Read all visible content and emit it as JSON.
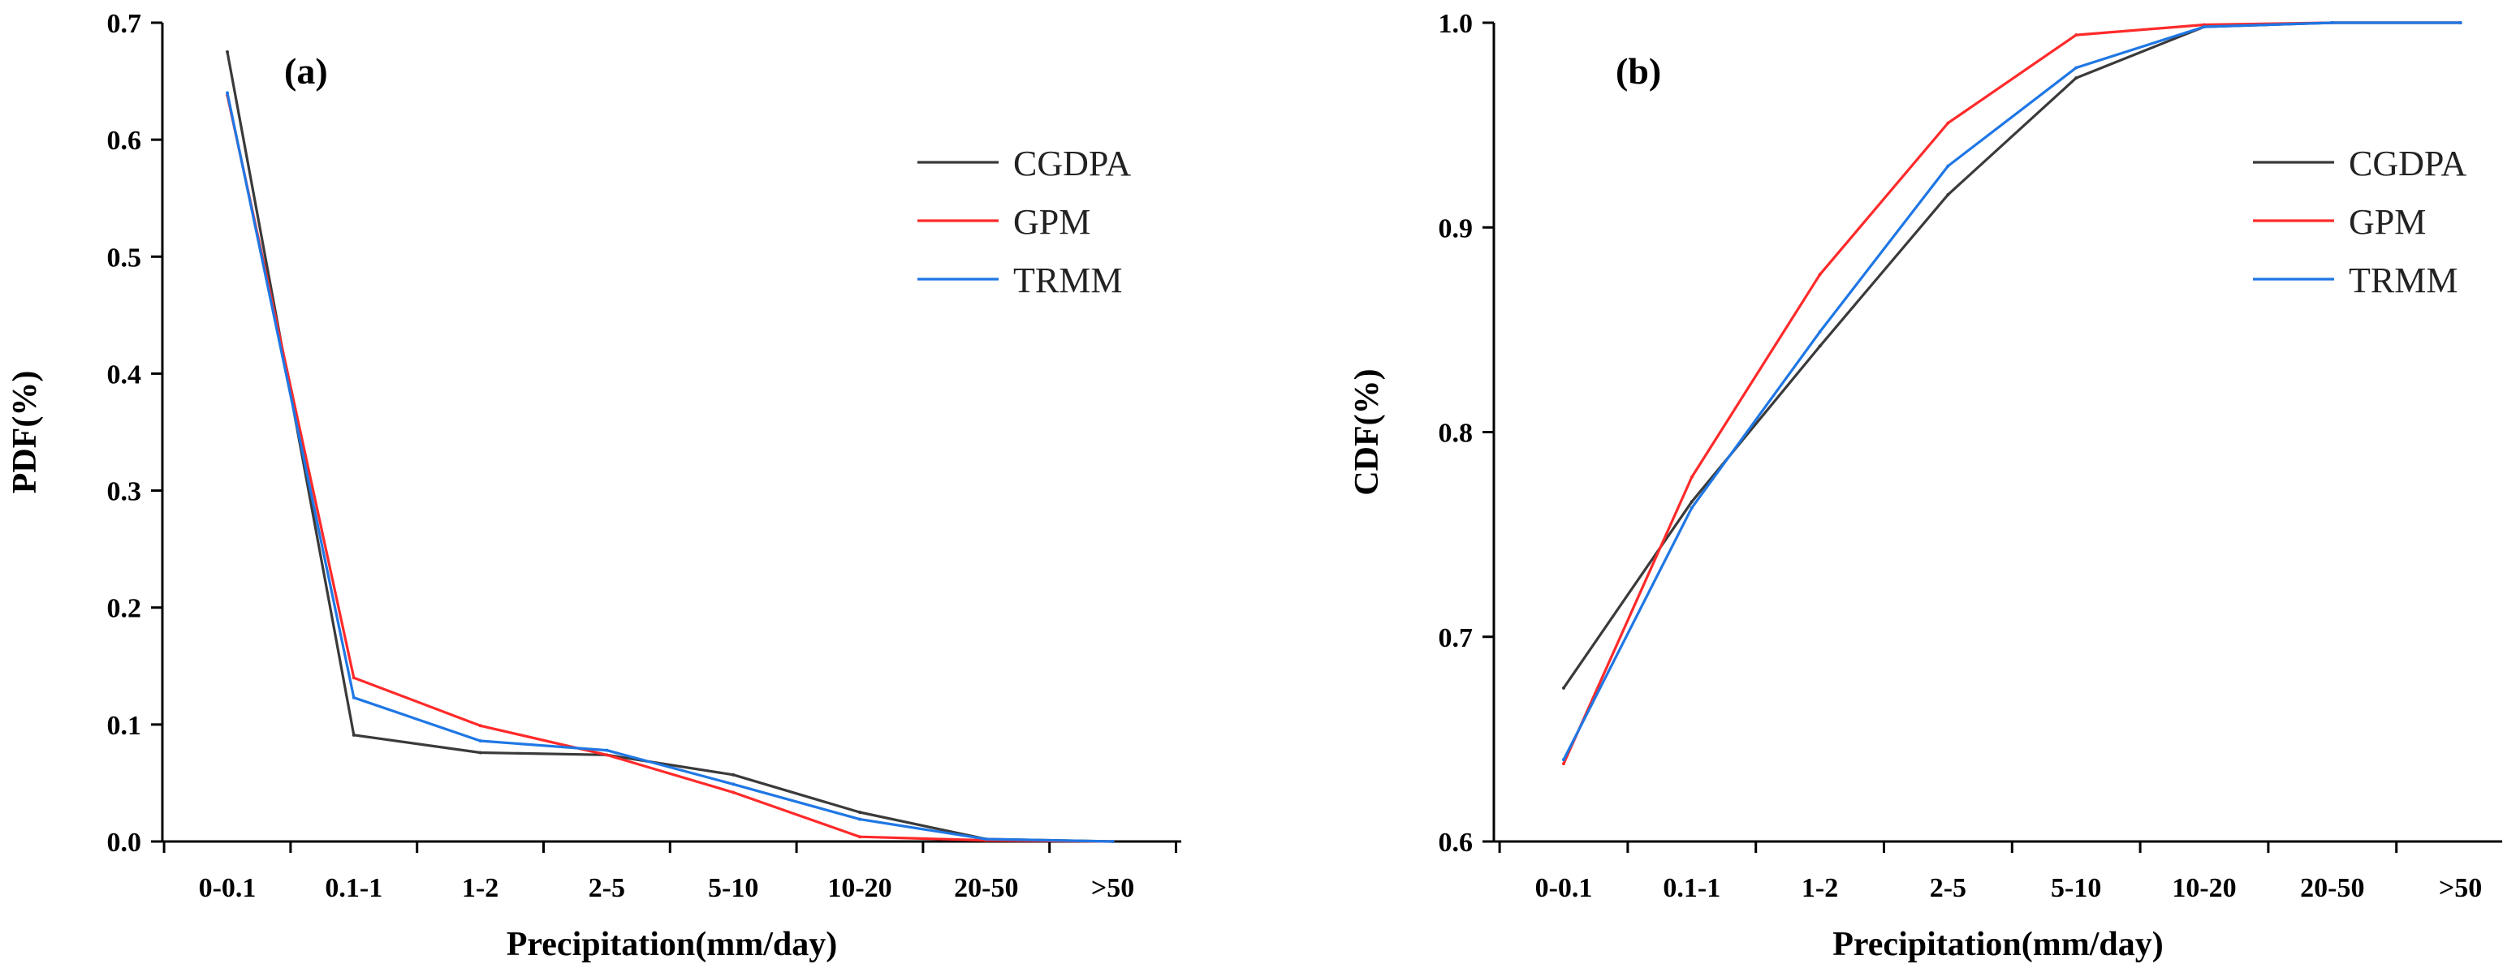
{
  "chart_data": [
    {
      "type": "line",
      "panel_label": "(a)",
      "title": "",
      "xlabel": "Precipitation(mm/day)",
      "ylabel": "PDF(%)",
      "ylim": [
        0.0,
        0.7
      ],
      "yticks": [
        "0.0",
        "0.1",
        "0.2",
        "0.3",
        "0.4",
        "0.5",
        "0.6",
        "0.7"
      ],
      "categories": [
        "0-0.1",
        "0.1-1",
        "1-2",
        "2-5",
        "5-10",
        "10-20",
        "20-50",
        ">50"
      ],
      "legend_position": "top-right",
      "series": [
        {
          "name": "CGDPA",
          "color": "#3a3a3a",
          "values": [
            0.675,
            0.091,
            0.076,
            0.074,
            0.057,
            0.025,
            0.002,
            0.0
          ]
        },
        {
          "name": "GPM",
          "color": "#ff2a2a",
          "values": [
            0.638,
            0.14,
            0.099,
            0.074,
            0.042,
            0.004,
            0.001,
            0.0
          ]
        },
        {
          "name": "TRMM",
          "color": "#1f77e4",
          "values": [
            0.64,
            0.123,
            0.086,
            0.078,
            0.049,
            0.019,
            0.002,
            0.0
          ]
        }
      ]
    },
    {
      "type": "line",
      "panel_label": "(b)",
      "title": "",
      "xlabel": "Precipitation(mm/day)",
      "ylabel": "CDF(%)",
      "ylim": [
        0.6,
        1.0
      ],
      "yticks": [
        "0.6",
        "0.7",
        "0.8",
        "0.9",
        "1.0"
      ],
      "categories": [
        "0-0.1",
        "0.1-1",
        "1-2",
        "2-5",
        "5-10",
        "10-20",
        "20-50",
        ">50"
      ],
      "legend_position": "right",
      "series": [
        {
          "name": "CGDPA",
          "color": "#3a3a3a",
          "values": [
            0.675,
            0.766,
            0.842,
            0.916,
            0.973,
            0.998,
            1.0,
            1.0
          ]
        },
        {
          "name": "GPM",
          "color": "#ff2a2a",
          "values": [
            0.638,
            0.778,
            0.877,
            0.951,
            0.994,
            0.999,
            1.0,
            1.0
          ]
        },
        {
          "name": "TRMM",
          "color": "#1f77e4",
          "values": [
            0.64,
            0.763,
            0.849,
            0.93,
            0.978,
            0.998,
            1.0,
            1.0
          ]
        }
      ]
    }
  ]
}
